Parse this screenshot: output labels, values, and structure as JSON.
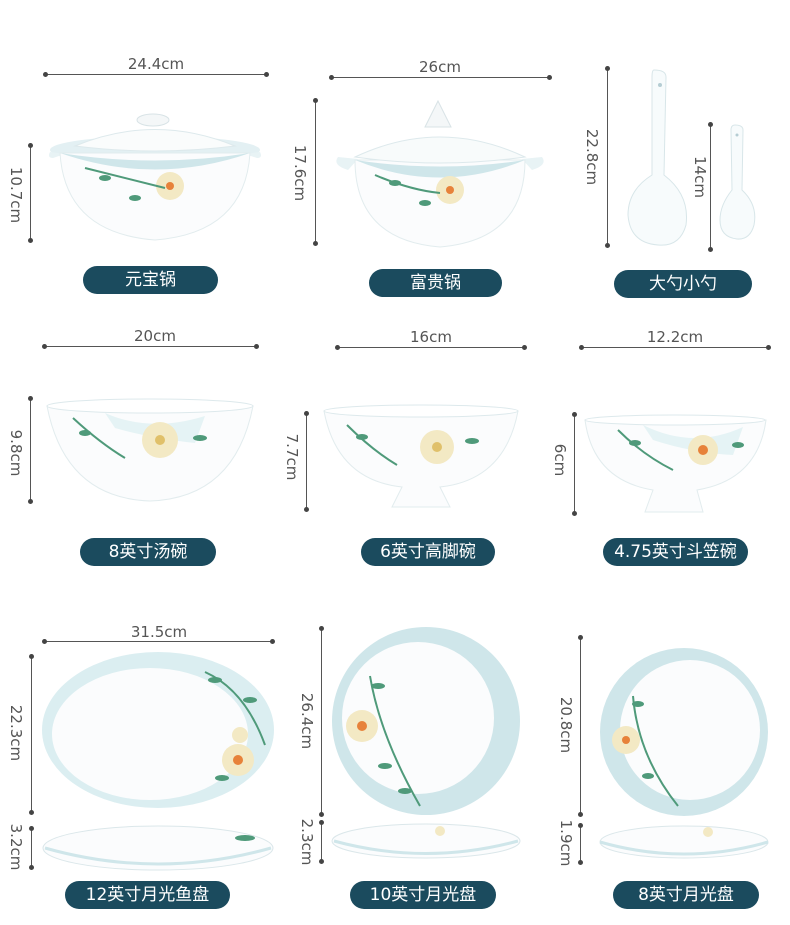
{
  "products": [
    {
      "name": "元宝锅",
      "width": "24.4cm",
      "height": "10.7cm"
    },
    {
      "name": "富贵锅",
      "width": "26cm",
      "height": "17.6cm"
    },
    {
      "name": "大勺小勺",
      "big_height": "22.8cm",
      "small_height": "14cm"
    },
    {
      "name": "8英寸汤碗",
      "width": "20cm",
      "height": "9.8cm"
    },
    {
      "name": "6英寸高脚碗",
      "width": "16cm",
      "height": "7.7cm"
    },
    {
      "name": "4.75英寸斗笠碗",
      "width": "12.2cm",
      "height": "6cm"
    },
    {
      "name": "12英寸月光鱼盘",
      "width": "31.5cm",
      "length": "22.3cm",
      "thickness": "3.2cm"
    },
    {
      "name": "10英寸月光盘",
      "length": "26.4cm",
      "thickness": "2.3cm"
    },
    {
      "name": "8英寸月光盘",
      "length": "20.8cm",
      "thickness": "1.9cm"
    }
  ],
  "colors": {
    "label_bg": "#1b4b5e",
    "rim_blue": "#cfe6ea",
    "flower": "#f3e9c4",
    "leaf": "#4f9a7a"
  }
}
